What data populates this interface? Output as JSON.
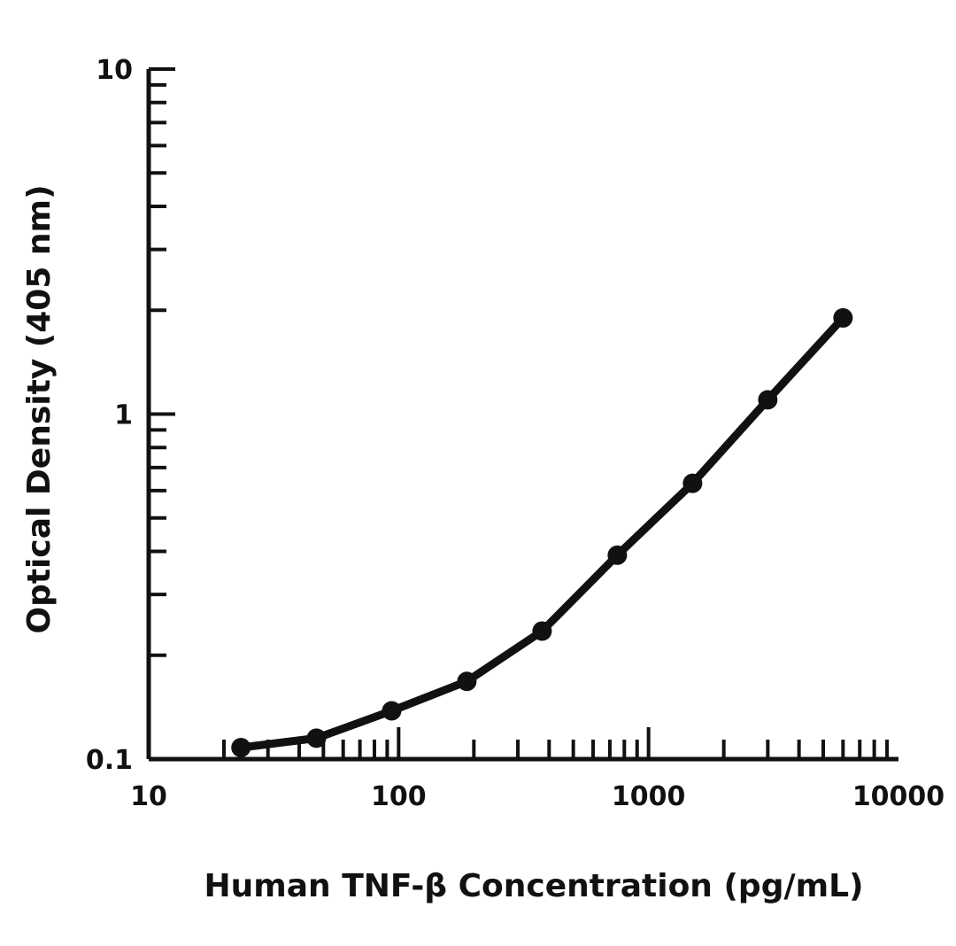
{
  "chart_data": {
    "type": "line",
    "title": "",
    "xlabel": "Human TNF-β Concentration (pg/mL)",
    "ylabel": "Optical Density (405 nm)",
    "xscale": "log",
    "yscale": "log",
    "xlim": [
      10,
      10000
    ],
    "ylim": [
      0.1,
      10
    ],
    "x_ticks": [
      {
        "value": 10,
        "label": "10"
      },
      {
        "value": 100,
        "label": "100"
      },
      {
        "value": 1000,
        "label": "1000"
      },
      {
        "value": 10000,
        "label": "10000"
      }
    ],
    "y_ticks": [
      {
        "value": 0.1,
        "label": "0.1"
      },
      {
        "value": 1,
        "label": "1"
      },
      {
        "value": 10,
        "label": "10"
      }
    ],
    "grid": false,
    "series": [
      {
        "x": [
          23.4,
          46.9,
          93.8,
          187.5,
          375,
          750,
          1500,
          3000,
          6000
        ],
        "y": [
          0.108,
          0.115,
          0.138,
          0.168,
          0.235,
          0.39,
          0.63,
          1.1,
          1.9
        ]
      }
    ],
    "colors": {
      "line": "#111111"
    }
  }
}
